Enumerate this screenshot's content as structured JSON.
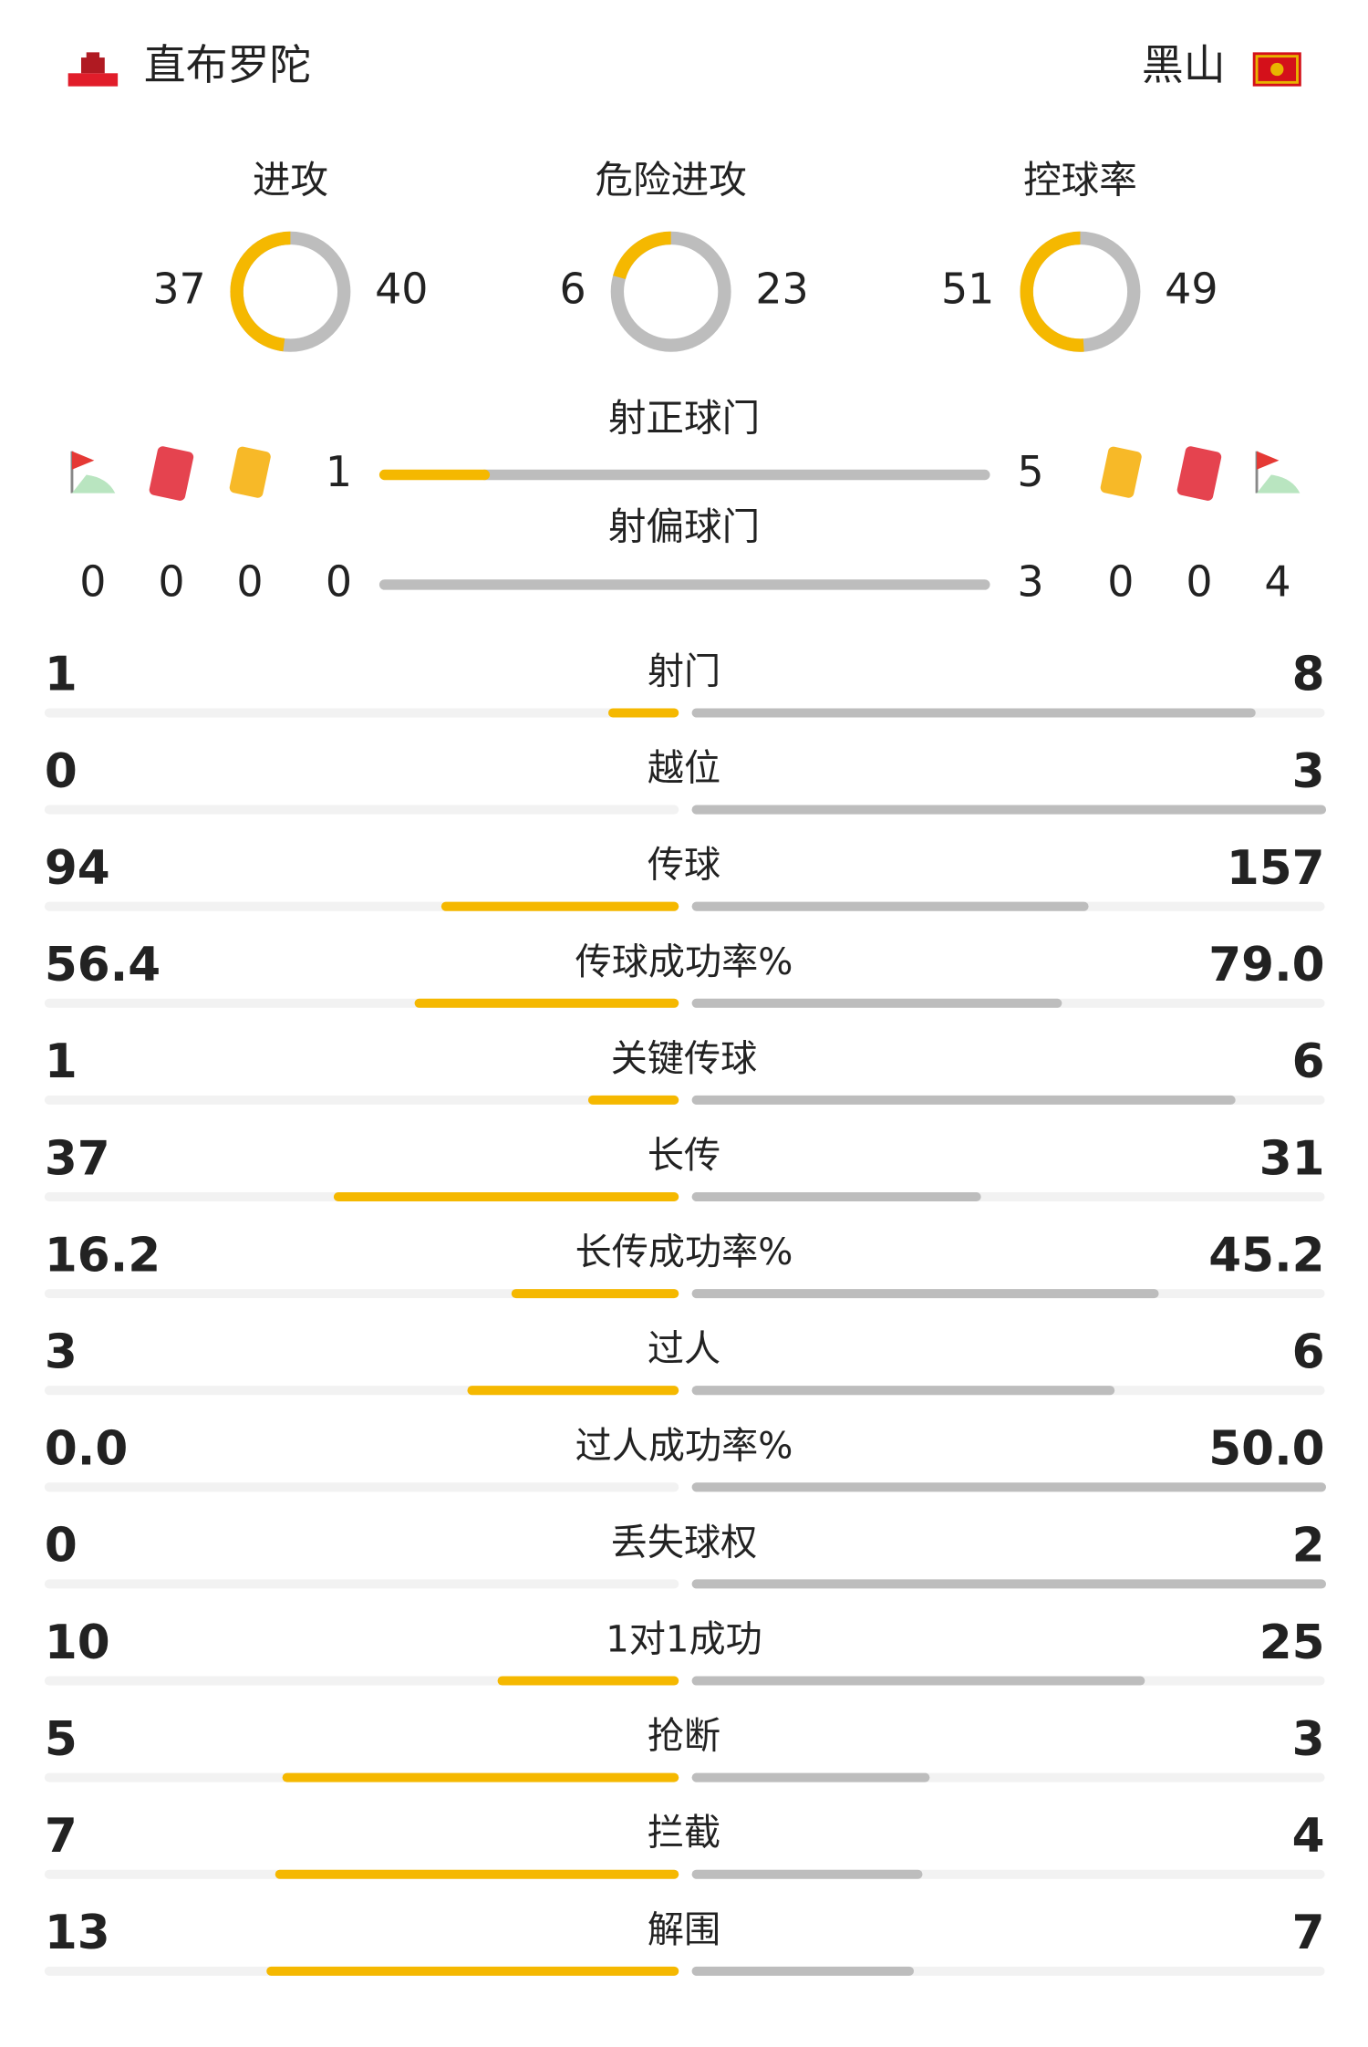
{
  "header": {
    "home": "直布罗陀",
    "away": "黑山"
  },
  "donuts": [
    {
      "label": "进攻",
      "home": 37,
      "away": 40
    },
    {
      "label": "危险进攻",
      "home": 6,
      "away": 23
    },
    {
      "label": "控球率",
      "home": 51,
      "away": 49
    }
  ],
  "shots": [
    {
      "label": "射正球门",
      "home": 1,
      "away": 5
    },
    {
      "label": "射偏球门",
      "home": 0,
      "away": 3
    }
  ],
  "discipline": {
    "home": {
      "corners": 0,
      "red_cards": 0,
      "yellow_cards": 0
    },
    "away": {
      "yellow_cards": 0,
      "red_cards": 0,
      "corners": 4
    }
  },
  "stats": [
    {
      "label": "射门",
      "home": 1,
      "away": 8
    },
    {
      "label": "越位",
      "home": 0,
      "away": 3
    },
    {
      "label": "传球",
      "home": 94,
      "away": 157
    },
    {
      "label": "传球成功率%",
      "home": 56.4,
      "away": {
        "value": 79,
        "label": "79.0"
      }
    },
    {
      "label": "关键传球",
      "home": 1,
      "away": 6
    },
    {
      "label": "长传",
      "home": 37,
      "away": 31
    },
    {
      "label": "长传成功率%",
      "home": 16.2,
      "away": 45.2
    },
    {
      "label": "过人",
      "home": 3,
      "away": 6
    },
    {
      "label": "过人成功率%",
      "home": {
        "value": 0,
        "label": "0.0"
      },
      "away": {
        "value": 50,
        "label": "50.0"
      }
    },
    {
      "label": "丢失球权",
      "home": 0,
      "away": 2
    },
    {
      "label": "1对1成功",
      "home": 10,
      "away": 25
    },
    {
      "label": "抢断",
      "home": 5,
      "away": 3
    },
    {
      "label": "拦截",
      "home": 7,
      "away": 4
    },
    {
      "label": "解围",
      "home": 13,
      "away": 7
    }
  ]
}
